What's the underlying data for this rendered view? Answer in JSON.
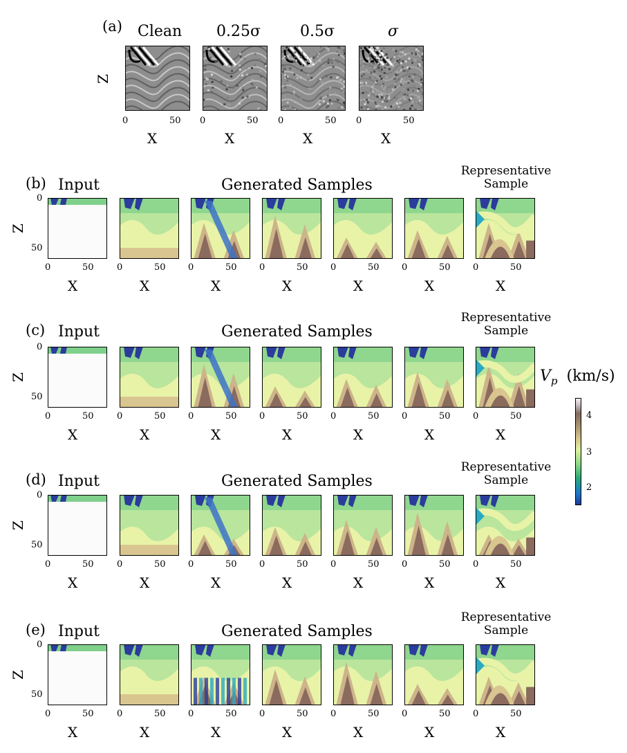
{
  "panel_a": {
    "label": "(a)",
    "titles": [
      "Clean",
      "0.25σ",
      "0.5σ",
      "σ"
    ],
    "xlabel": "X",
    "ylabel": "Z",
    "xticks": [
      "0",
      "50"
    ]
  },
  "rows": [
    {
      "label": "(b)",
      "input_title": "Input",
      "generated_title": "Generated Samples",
      "rep_title_1": "Representative",
      "rep_title_2": "Sample"
    },
    {
      "label": "(c)",
      "input_title": "Input",
      "generated_title": "Generated Samples",
      "rep_title_1": "Representative",
      "rep_title_2": "Sample"
    },
    {
      "label": "(d)",
      "input_title": "Input",
      "generated_title": "Generated Samples",
      "rep_title_1": "Representative",
      "rep_title_2": "Sample"
    },
    {
      "label": "(e)",
      "input_title": "Input",
      "generated_title": "Generated Samples",
      "rep_title_1": "Representative",
      "rep_title_2": "Sample"
    }
  ],
  "axes": {
    "xlabel": "X",
    "ylabel": "Z",
    "xticks": [
      "0",
      "50"
    ],
    "yticks": [
      "0",
      "50"
    ]
  },
  "colorbar": {
    "label_main": "V",
    "label_sub": "p",
    "label_unit": "(km/s)",
    "ticks": [
      "4",
      "3",
      "2"
    ]
  },
  "colors": {
    "input_blue": "#2b3c9c",
    "input_green": "#7fd08a",
    "bg_green": "#b5e39a",
    "brown": "#8a6b5e"
  }
}
